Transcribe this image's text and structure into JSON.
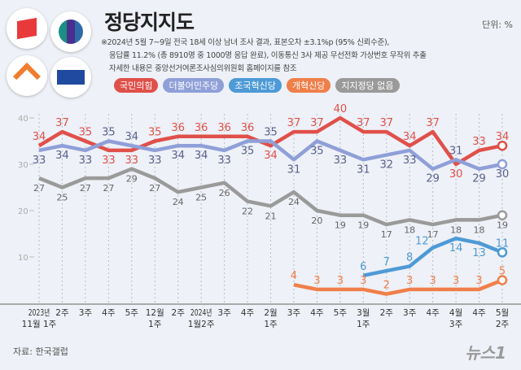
{
  "header": {
    "title": "정당지지도",
    "unit": "단위: %",
    "notes": [
      "※2024년 5월 7~9일 전국 18세 이상 남녀 조사 결과, 표본오차 ±3.1%p (95% 신뢰수준),",
      "응답률 11.2% (총 8910명 중 1000명 응답 완료), 이동통신 3사 제공 무선전화 가상번호 무작위 추출",
      "자세한 내용은 중앙선거여론조사심의위원회 홈페이지를 참조"
    ]
  },
  "logos": [
    {
      "name": "ppp-logo",
      "color": "#e83a3a"
    },
    {
      "name": "democratic-logo",
      "color": "#2c6aa8"
    },
    {
      "name": "reform-logo",
      "color": "#f07d2e"
    },
    {
      "name": "rebuilding-korea-logo",
      "color": "#1f4aa0"
    }
  ],
  "footer": {
    "source": "자료: 한국갤럽",
    "brand": "뉴스1"
  },
  "chart_data": {
    "type": "line",
    "title": "정당지지도",
    "ylim": [
      0,
      40
    ],
    "yticks": [
      10,
      20,
      30,
      40
    ],
    "grid": false,
    "legend_position": "top",
    "categories": [
      [
        "2023년",
        "11월 1주"
      ],
      [
        "2주"
      ],
      [
        "3주"
      ],
      [
        "4주"
      ],
      [
        "5주"
      ],
      [
        "12월",
        "1주"
      ],
      [
        "2주"
      ],
      [
        "2024년",
        "1월2주"
      ],
      [
        "3주"
      ],
      [
        "4주"
      ],
      [
        "2월",
        "1주"
      ],
      [
        "3주"
      ],
      [
        "4주"
      ],
      [
        "5주"
      ],
      [
        "3월",
        "1주"
      ],
      [
        "2주"
      ],
      [
        "3주"
      ],
      [
        "4주"
      ],
      [
        "4월",
        "3주"
      ],
      [
        "4주"
      ],
      [
        "5월",
        "2주"
      ]
    ],
    "series": [
      {
        "name": "국민의힘",
        "color": "#e0504a",
        "values": [
          34,
          37,
          35,
          33,
          33,
          35,
          36,
          36,
          36,
          36,
          34,
          37,
          37,
          40,
          37,
          37,
          34,
          37,
          30,
          33,
          34
        ]
      },
      {
        "name": "더불어민주당",
        "color": "#8f9fd8",
        "label_color": "#5a5f8c",
        "values": [
          33,
          34,
          33,
          35,
          34,
          33,
          34,
          34,
          33,
          35,
          35,
          31,
          35,
          33,
          31,
          32,
          33,
          29,
          31,
          29,
          30
        ]
      },
      {
        "name": "조국혁신당",
        "color": "#4d9ad6",
        "values": [
          null,
          null,
          null,
          null,
          null,
          null,
          null,
          null,
          null,
          null,
          null,
          null,
          null,
          null,
          6,
          7,
          8,
          12,
          14,
          13,
          11
        ]
      },
      {
        "name": "개혁신당",
        "color": "#f07f4a",
        "values": [
          null,
          null,
          null,
          null,
          null,
          null,
          null,
          null,
          null,
          null,
          null,
          4,
          3,
          3,
          3,
          2,
          3,
          3,
          3,
          3,
          5
        ]
      },
      {
        "name": "지지정당 없음",
        "color": "#9a9a9a",
        "label_color": "#666",
        "values": [
          27,
          25,
          27,
          27,
          29,
          27,
          24,
          25,
          26,
          22,
          21,
          24,
          20,
          19,
          19,
          17,
          18,
          17,
          18,
          18,
          19
        ]
      }
    ]
  }
}
